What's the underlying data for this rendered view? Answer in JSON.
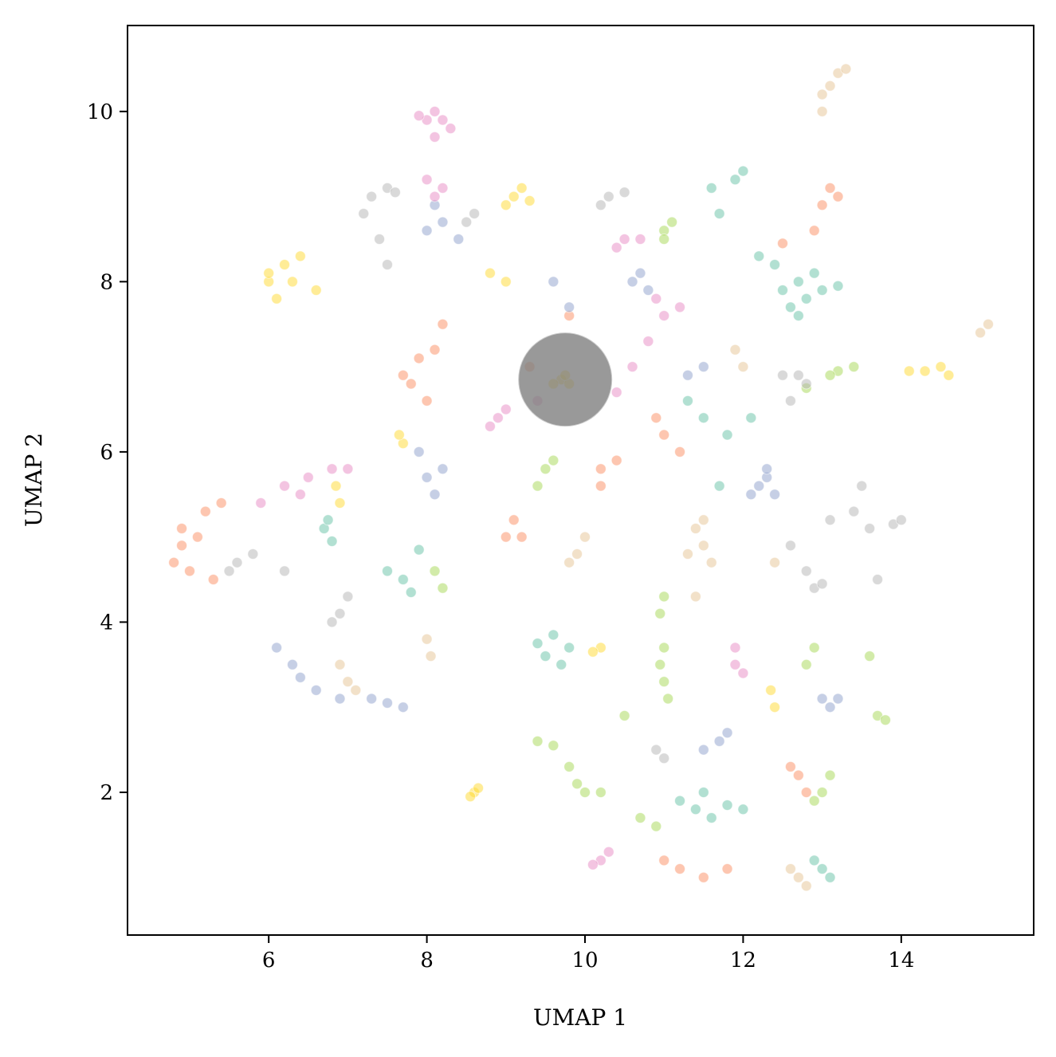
{
  "chart_data": {
    "type": "scatter",
    "xlabel": "UMAP 1",
    "ylabel": "UMAP 2",
    "xlim": [
      4.214,
      15.675
    ],
    "ylim": [
      0.323,
      11.01
    ],
    "xticks": [
      6,
      8,
      10,
      12,
      14
    ],
    "yticks": [
      2,
      4,
      6,
      8,
      10
    ],
    "highlight": {
      "x": 9.75,
      "y": 6.85,
      "color": "#808080"
    },
    "series": [
      {
        "color": "#66c2a5",
        "x": [
          12.5,
          12.7,
          12.8,
          12.9,
          12.6,
          13.0,
          12.4,
          13.2,
          12.7,
          11.6,
          11.9,
          12.0,
          11.7,
          12.2,
          6.7,
          6.8,
          6.75,
          7.7,
          7.8,
          7.9,
          7.5,
          9.5,
          9.7,
          9.8,
          9.4,
          9.6,
          11.4,
          11.6,
          11.8,
          11.2,
          12.0,
          11.5,
          13.0,
          13.1,
          12.9,
          11.5,
          11.8,
          12.1,
          11.3,
          11.7
        ],
        "y": [
          7.9,
          8.0,
          7.8,
          8.1,
          7.7,
          7.9,
          8.2,
          7.95,
          7.6,
          9.1,
          9.2,
          9.3,
          8.8,
          8.3,
          5.1,
          4.95,
          5.2,
          4.5,
          4.35,
          4.85,
          4.6,
          3.6,
          3.5,
          3.7,
          3.75,
          3.85,
          1.8,
          1.7,
          1.85,
          1.9,
          1.8,
          2.0,
          1.1,
          1.0,
          1.2,
          6.4,
          6.2,
          6.4,
          6.6,
          5.6
        ]
      },
      {
        "color": "#fc8d62",
        "x": [
          4.8,
          4.9,
          5.0,
          5.1,
          4.9,
          5.3,
          5.4,
          5.2,
          7.8,
          7.9,
          8.0,
          7.7,
          8.1,
          8.2,
          9.0,
          9.1,
          9.2,
          13.0,
          13.1,
          13.2,
          12.9,
          10.2,
          10.4,
          10.2,
          11.0,
          11.2,
          11.5,
          11.8,
          12.6,
          12.7,
          12.8,
          10.9,
          11.0,
          11.2,
          9.3,
          9.8,
          12.5
        ],
        "y": [
          4.7,
          4.9,
          4.6,
          5.0,
          5.1,
          4.5,
          5.4,
          5.3,
          6.8,
          7.1,
          6.6,
          6.9,
          7.2,
          7.5,
          5.0,
          5.2,
          5.0,
          8.9,
          9.1,
          9.0,
          8.6,
          5.8,
          5.9,
          5.6,
          1.2,
          1.1,
          1.0,
          1.1,
          2.3,
          2.2,
          2.0,
          6.4,
          6.2,
          6.0,
          7.0,
          7.6,
          8.45
        ]
      },
      {
        "color": "#8da0cb",
        "x": [
          12.2,
          12.3,
          12.4,
          12.1,
          12.3,
          8.0,
          8.1,
          8.2,
          7.9,
          6.1,
          6.3,
          6.4,
          6.6,
          6.9,
          7.3,
          7.5,
          7.7,
          8.0,
          8.2,
          8.4,
          8.1,
          10.6,
          10.7,
          10.8,
          11.7,
          11.8,
          11.5,
          13.0,
          13.1,
          13.2,
          9.6,
          9.8,
          11.3,
          11.5
        ],
        "y": [
          5.6,
          5.7,
          5.5,
          5.5,
          5.8,
          5.7,
          5.5,
          5.8,
          6.0,
          3.7,
          3.5,
          3.35,
          3.2,
          3.1,
          3.1,
          3.05,
          3.0,
          8.6,
          8.7,
          8.5,
          8.9,
          8.0,
          8.1,
          7.9,
          2.6,
          2.7,
          2.5,
          3.1,
          3.0,
          3.1,
          8.0,
          7.7,
          6.9,
          7.0
        ]
      },
      {
        "color": "#e78ac3",
        "x": [
          8.0,
          8.1,
          8.2,
          8.3,
          8.1,
          7.9,
          8.1,
          8.2,
          8.0,
          6.2,
          6.5,
          6.8,
          7.0,
          6.4,
          5.9,
          8.9,
          9.0,
          8.8,
          10.5,
          10.7,
          10.4,
          10.9,
          11.0,
          11.2,
          10.8,
          11.9,
          12.0,
          11.9,
          10.2,
          10.3,
          10.1,
          9.4,
          10.6,
          10.4
        ],
        "y": [
          9.9,
          10.0,
          9.9,
          9.8,
          9.7,
          9.95,
          9.0,
          9.1,
          9.2,
          5.6,
          5.7,
          5.8,
          5.8,
          5.5,
          5.4,
          6.4,
          6.5,
          6.3,
          8.5,
          8.5,
          8.4,
          7.8,
          7.6,
          7.7,
          7.3,
          3.5,
          3.4,
          3.7,
          1.2,
          1.3,
          1.15,
          6.6,
          7.0,
          6.7
        ]
      },
      {
        "color": "#a6d854",
        "x": [
          11.0,
          11.1,
          11.0,
          11.0,
          10.95,
          11.05,
          11.0,
          11.0,
          10.95,
          10.0,
          9.9,
          10.2,
          9.8,
          13.0,
          12.9,
          13.1,
          13.7,
          13.8,
          13.6,
          13.2,
          13.4,
          13.1,
          12.8,
          9.5,
          9.6,
          9.4,
          8.2,
          8.1,
          12.8,
          12.9,
          10.7,
          10.9,
          9.4,
          9.6,
          10.5
        ],
        "y": [
          8.6,
          8.7,
          8.5,
          3.3,
          3.5,
          3.1,
          3.7,
          4.3,
          4.1,
          2.0,
          2.1,
          2.0,
          2.3,
          2.0,
          1.9,
          2.2,
          2.9,
          2.85,
          3.6,
          6.95,
          7.0,
          6.9,
          6.75,
          5.8,
          5.9,
          5.6,
          4.4,
          4.6,
          3.5,
          3.7,
          1.7,
          1.6,
          2.6,
          2.55,
          2.9
        ]
      },
      {
        "color": "#ffd92f",
        "x": [
          6.0,
          6.2,
          6.4,
          6.3,
          6.6,
          6.1,
          6.0,
          9.1,
          9.2,
          9.3,
          9.0,
          9.7,
          9.8,
          9.75,
          9.6,
          14.5,
          14.3,
          14.6,
          14.1,
          8.6,
          8.65,
          8.55,
          7.7,
          7.65,
          12.4,
          12.35,
          10.2,
          10.1,
          8.8,
          9.0,
          6.9,
          6.85
        ],
        "y": [
          8.0,
          8.2,
          8.3,
          8.0,
          7.9,
          7.8,
          8.1,
          9.0,
          9.1,
          8.95,
          8.9,
          6.85,
          6.8,
          6.9,
          6.8,
          7.0,
          6.95,
          6.9,
          6.95,
          2.0,
          2.05,
          1.95,
          6.1,
          6.2,
          3.0,
          3.2,
          3.7,
          3.65,
          8.1,
          8.0,
          5.4,
          5.6
        ]
      },
      {
        "color": "#e5c494",
        "x": [
          13.2,
          13.3,
          13.1,
          13.0,
          11.5,
          11.4,
          11.6,
          11.3,
          11.5,
          9.9,
          9.8,
          10.0,
          7.0,
          6.9,
          7.1,
          8.0,
          8.05,
          12.7,
          12.8,
          12.6,
          11.9,
          12.0,
          15.0,
          15.1,
          11.4,
          12.4,
          13.0
        ],
        "y": [
          10.45,
          10.5,
          10.3,
          10.2,
          4.9,
          5.1,
          4.7,
          4.8,
          5.2,
          4.8,
          4.7,
          5.0,
          3.3,
          3.5,
          3.2,
          3.8,
          3.6,
          1.0,
          0.9,
          1.1,
          7.2,
          7.0,
          7.4,
          7.5,
          4.3,
          4.7,
          10.0
        ]
      },
      {
        "color": "#b3b3b3",
        "x": [
          7.3,
          7.5,
          7.6,
          7.2,
          7.4,
          7.5,
          12.5,
          12.7,
          12.8,
          12.6,
          13.1,
          13.4,
          13.6,
          13.5,
          12.9,
          13.0,
          12.8,
          5.6,
          5.8,
          5.5,
          6.2,
          6.9,
          7.0,
          6.8,
          10.3,
          10.5,
          10.2,
          8.5,
          8.6,
          11.0,
          10.9,
          13.7,
          13.9,
          14.0,
          12.6
        ],
        "y": [
          9.0,
          9.1,
          9.05,
          8.8,
          8.5,
          8.2,
          6.9,
          6.9,
          6.8,
          6.6,
          5.2,
          5.3,
          5.1,
          5.6,
          4.4,
          4.45,
          4.6,
          4.7,
          4.8,
          4.6,
          4.6,
          4.1,
          4.3,
          4.0,
          9.0,
          9.05,
          8.9,
          8.7,
          8.8,
          2.4,
          2.5,
          4.5,
          5.15,
          5.2,
          4.9
        ]
      }
    ]
  }
}
